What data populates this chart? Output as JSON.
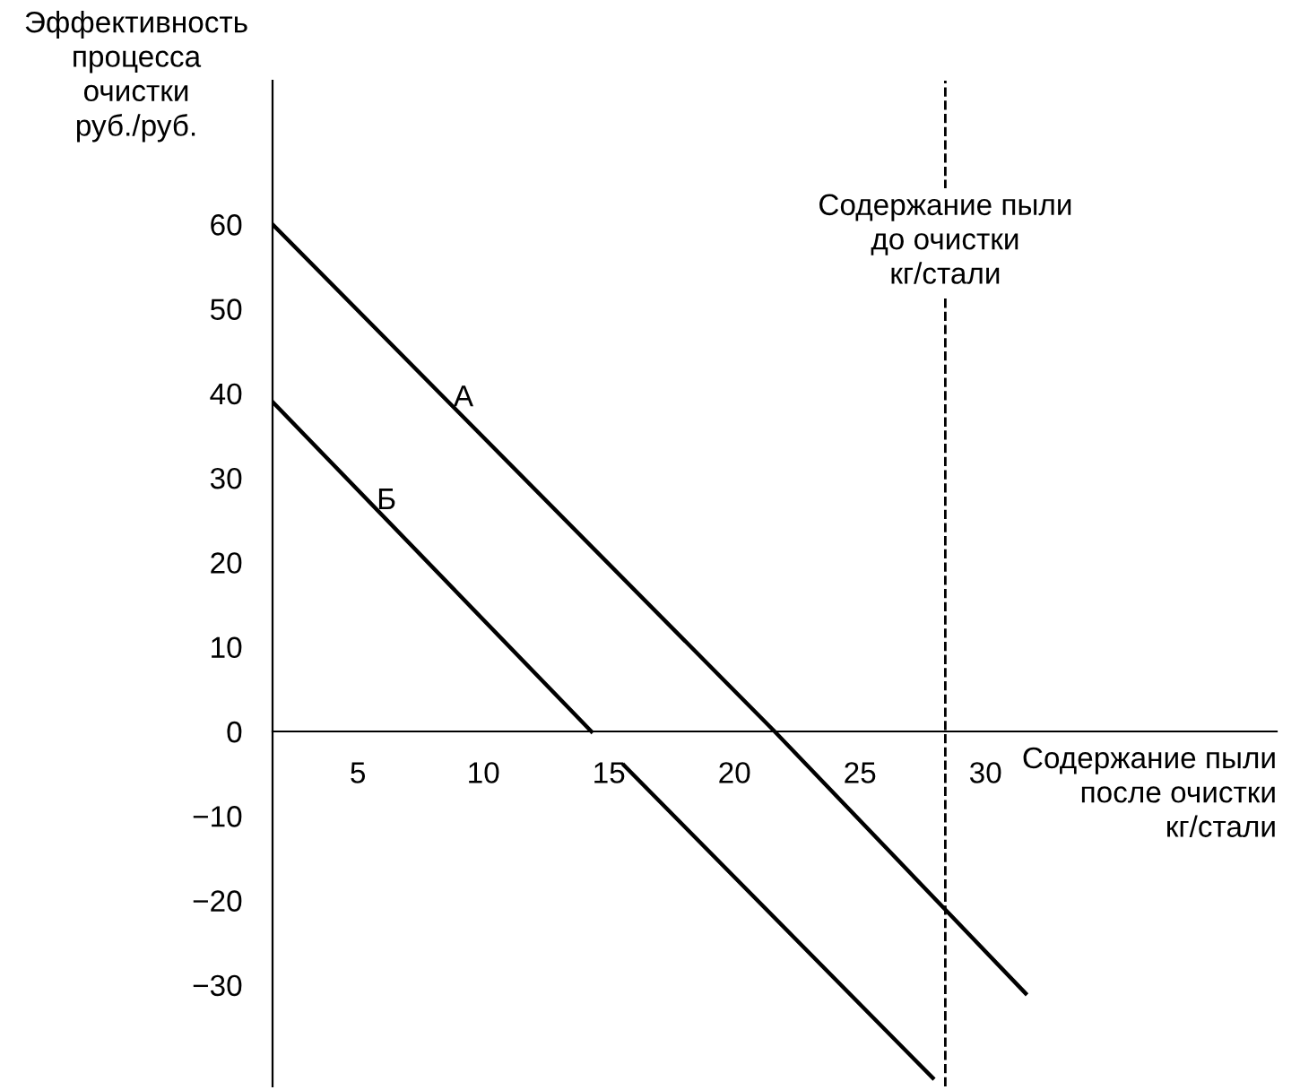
{
  "chart_data": {
    "type": "line",
    "xlabel": "Содержание пыли\nпосле очистки\nкг/стали",
    "ylabel": "Эффективность\nпроцесса\nочистки\nруб./руб.",
    "series": [
      {
        "x": [
          1.6,
          21.6,
          31.6
        ],
        "values": [
          60,
          0,
          -31
        ],
        "color": "#000000"
      },
      {
        "x": [
          1.6,
          14.3,
          14.5,
          15.6,
          27.9
        ],
        "values": [
          39,
          0,
          null,
          -4,
          -41
        ],
        "color": "#000000"
      }
    ],
    "annotations": [
      "А",
      "Б"
    ],
    "ref_lines": [
      {
        "axis": "x",
        "value": 28.4,
        "label": "Содержание пыли\nдо очистки\nкг/стали",
        "line_style": "dashed",
        "color": "#000000"
      }
    ],
    "xlim": [
      1.6,
      41.6
    ],
    "ylim": [
      -42,
      77
    ],
    "xticks": [
      5,
      10,
      15,
      20,
      25,
      30
    ],
    "yticks": [
      {
        "value": -30,
        "label": "−30"
      },
      {
        "value": -20,
        "label": "−20"
      },
      {
        "value": -10,
        "label": "−10"
      },
      0,
      10,
      20,
      30,
      40,
      50,
      60
    ],
    "grid": false,
    "legend": false,
    "marker": "none",
    "line_style": "solid"
  }
}
